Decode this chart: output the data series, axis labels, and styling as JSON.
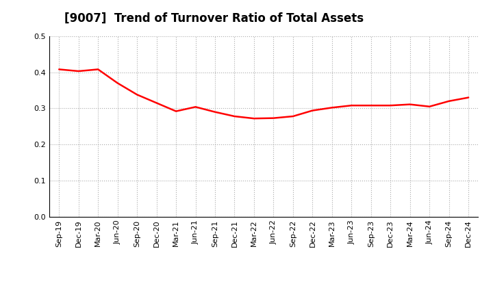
{
  "title": "[9007]  Trend of Turnover Ratio of Total Assets",
  "x_labels": [
    "Sep-19",
    "Dec-19",
    "Mar-20",
    "Jun-20",
    "Sep-20",
    "Dec-20",
    "Mar-21",
    "Jun-21",
    "Sep-21",
    "Dec-21",
    "Mar-22",
    "Jun-22",
    "Sep-22",
    "Dec-22",
    "Mar-23",
    "Jun-23",
    "Sep-23",
    "Dec-23",
    "Mar-24",
    "Jun-24",
    "Sep-24",
    "Dec-24"
  ],
  "y_vals": [
    0.408,
    0.403,
    0.408,
    0.37,
    0.338,
    0.315,
    0.292,
    0.304,
    0.29,
    0.278,
    0.272,
    0.273,
    0.278,
    0.294,
    0.302,
    0.308,
    0.308,
    0.308,
    0.311,
    0.305,
    0.32,
    0.33
  ],
  "line_color": "#FF0000",
  "line_width": 1.8,
  "ylim": [
    0.0,
    0.5
  ],
  "yticks": [
    0.0,
    0.1,
    0.2,
    0.3,
    0.4,
    0.5
  ],
  "background_color": "#FFFFFF",
  "grid_color": "#AAAAAA",
  "title_fontsize": 12,
  "tick_fontsize": 8,
  "title_fontweight": "bold"
}
